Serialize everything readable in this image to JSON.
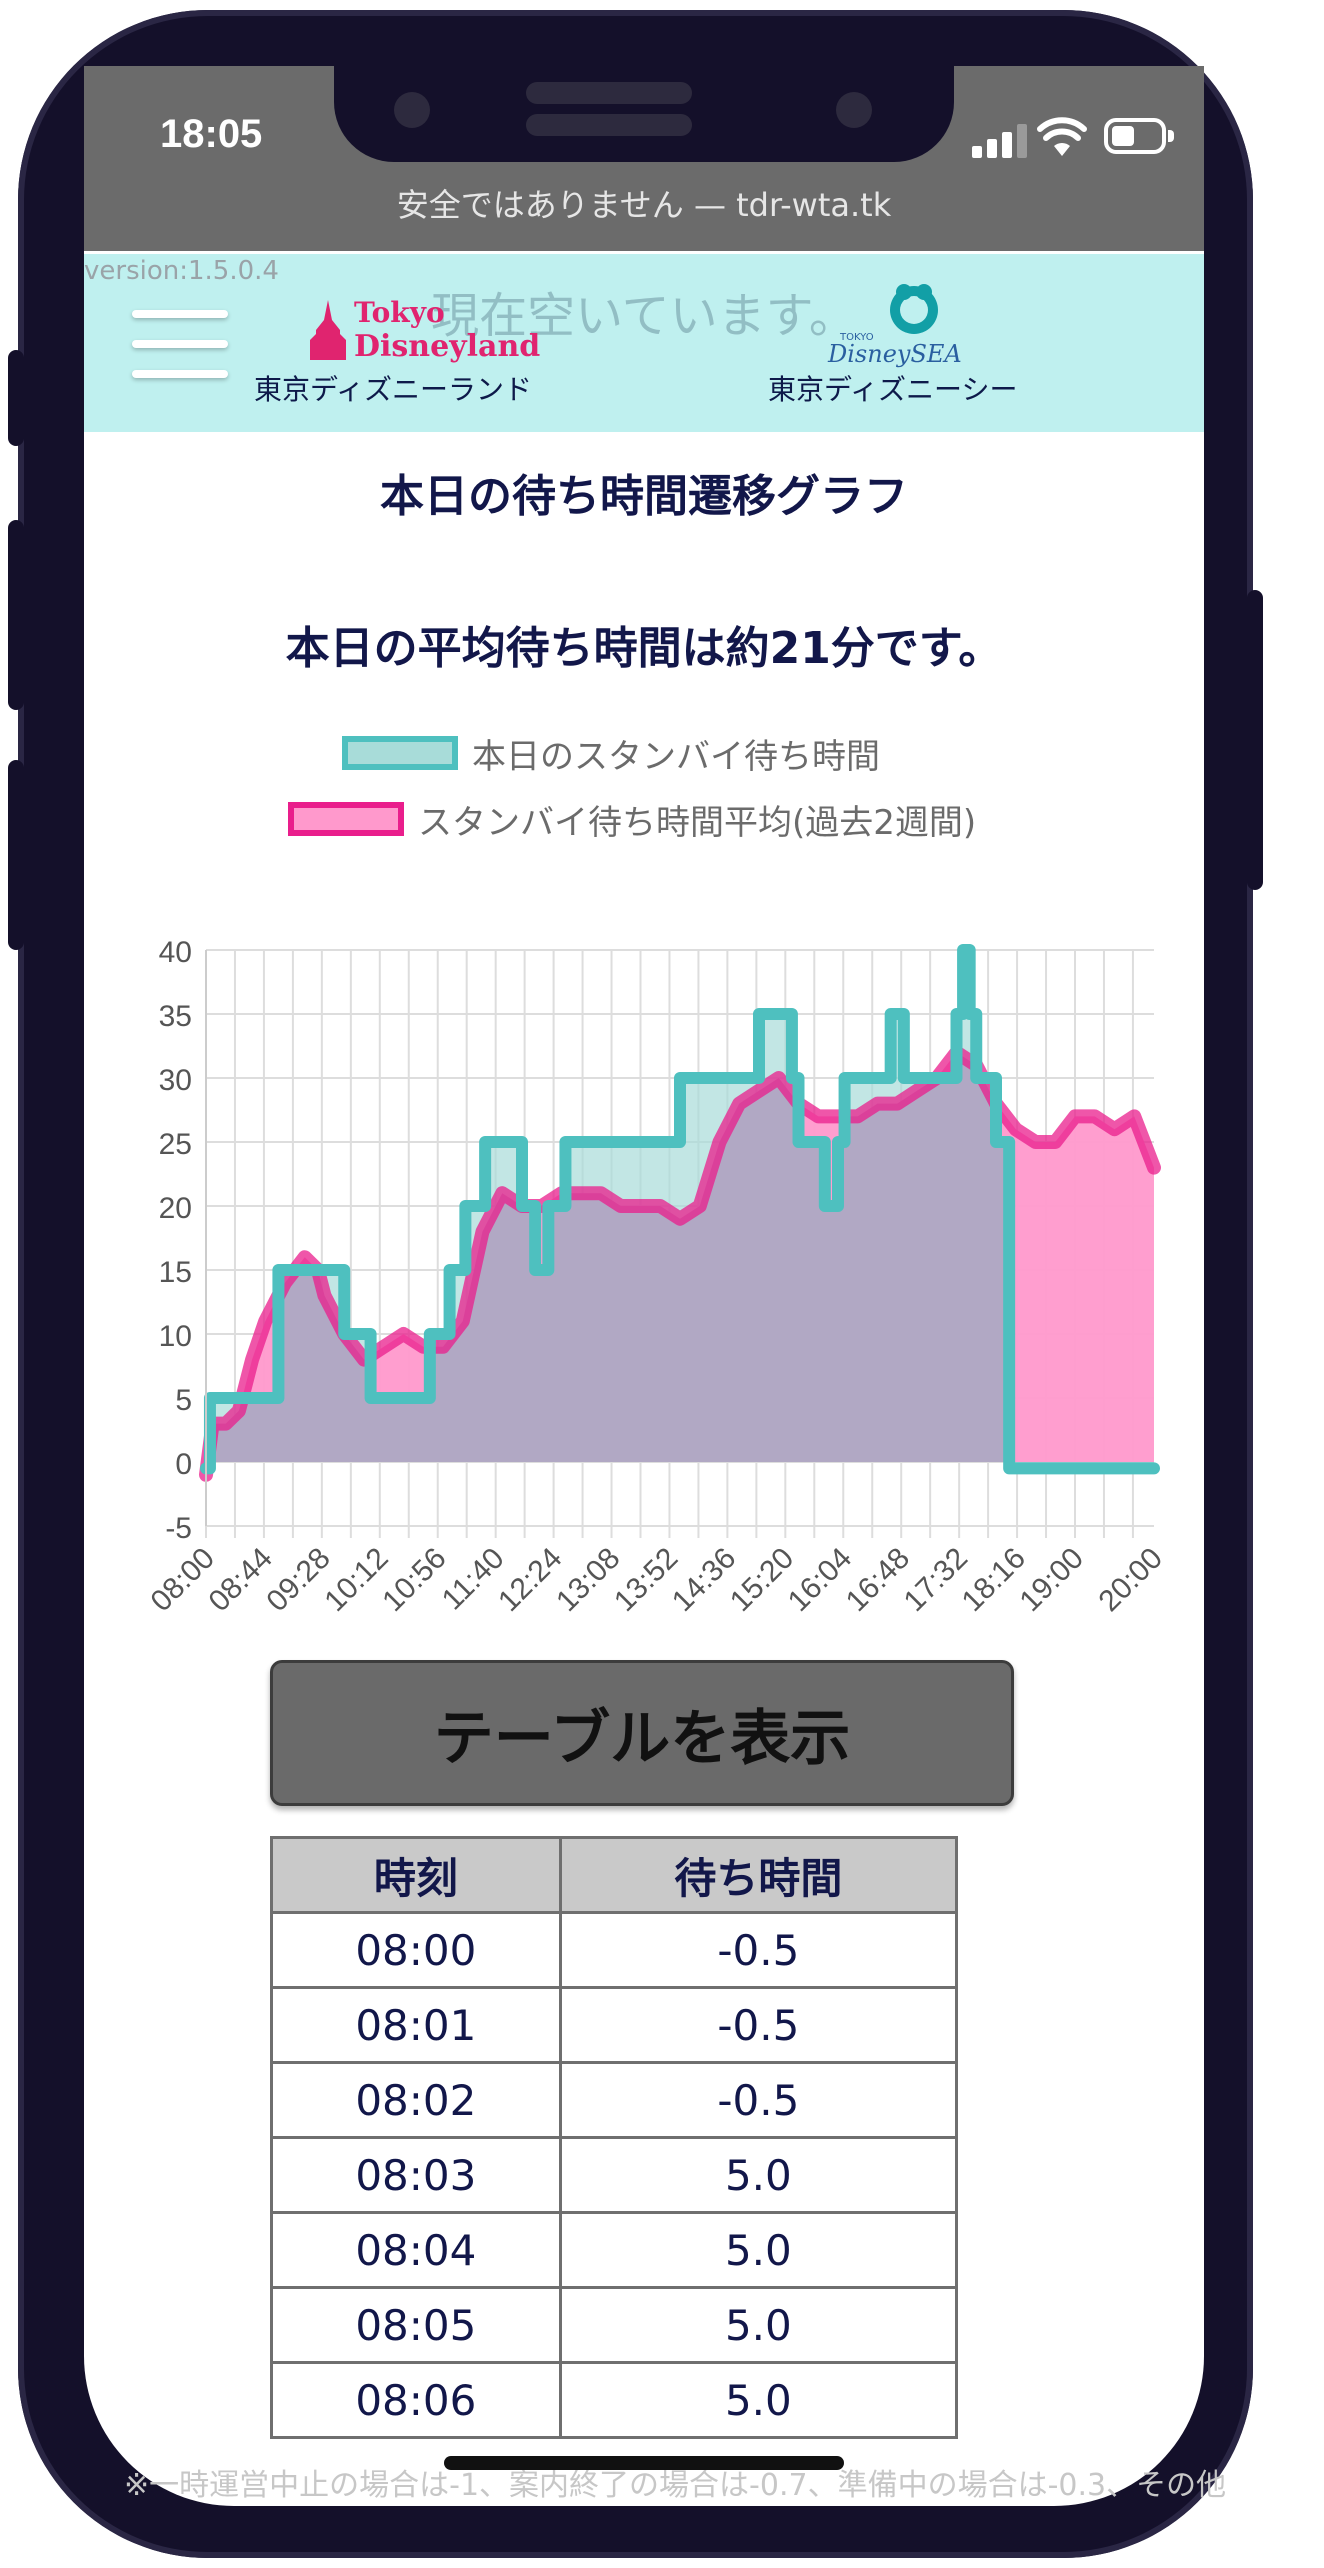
{
  "status_bar": {
    "time": "18:05"
  },
  "browser": {
    "url_text": "安全ではありません — tdr-wta.tk"
  },
  "header": {
    "version": "version:1.5.0.4",
    "status_text": "現在空いています。",
    "tdl_logo_line1": "Tokyo",
    "tdl_logo_line2": "Disneyland",
    "tds_logo_small": "TOKYO",
    "tds_logo_text": "DisneySEA",
    "tdl_label": "東京ディズニーランド",
    "tds_label": "東京ディズニーシー"
  },
  "page": {
    "title": "本日の待ち時間遷移グラフ",
    "average_text": "本日の平均待ち時間は約21分です。",
    "show_table_button": "テーブルを表示"
  },
  "colors": {
    "today_line": "#4ec0bf",
    "today_fill": "#a8dcd9",
    "avg_line": "#e91e8c",
    "avg_fill": "#ff99cc",
    "overlap_fill": "#b1a8c4",
    "header_bg": "#bff0ef"
  },
  "chart_data": {
    "type": "line",
    "title": "",
    "xlabel": "",
    "ylabel": "",
    "ylim": [
      -5,
      40
    ],
    "yticks": [
      "40",
      "35",
      "30",
      "25",
      "20",
      "15",
      "10",
      "5",
      "0",
      "-5"
    ],
    "xticks": [
      "08:00",
      "08:44",
      "09:28",
      "10:12",
      "10:56",
      "11:40",
      "12:24",
      "13:08",
      "13:52",
      "14:36",
      "15:20",
      "16:04",
      "16:48",
      "17:32",
      "18:16",
      "19:00",
      "20:00"
    ],
    "grid": true,
    "legend_position": "top",
    "series": [
      {
        "name": "本日のスタンバイ待ち時間",
        "step": true,
        "x": [
          "08:00",
          "08:03",
          "08:25",
          "08:53",
          "08:55",
          "09:30",
          "09:45",
          "10:00",
          "10:05",
          "10:30",
          "10:50",
          "10:55",
          "11:05",
          "11:12",
          "11:17",
          "11:22",
          "11:32",
          "11:36",
          "12:00",
          "12:10",
          "12:18",
          "12:20",
          "12:30",
          "12:33",
          "13:40",
          "13:50",
          "14:00",
          "14:30",
          "14:40",
          "15:00",
          "15:15",
          "15:25",
          "15:30",
          "15:45",
          "15:50",
          "16:00",
          "16:05",
          "16:30",
          "16:40",
          "16:50",
          "17:25",
          "17:30",
          "17:35",
          "17:40",
          "17:45",
          "17:50",
          "18:00",
          "18:10",
          "19:30",
          "20:00"
        ],
        "y": [
          -0.5,
          5,
          5,
          5,
          15,
          15,
          10,
          10,
          5,
          5,
          10,
          10,
          15,
          15,
          20,
          20,
          25,
          25,
          20,
          15,
          15,
          20,
          20,
          25,
          25,
          25,
          30,
          30,
          30,
          35,
          35,
          30,
          25,
          25,
          20,
          25,
          30,
          30,
          35,
          30,
          30,
          35,
          40,
          35,
          30,
          30,
          25,
          -0.5,
          -0.5,
          -0.5
        ]
      },
      {
        "name": "スタンバイ待ち時間平均(過去2週間)",
        "x": [
          "08:00",
          "08:05",
          "08:15",
          "08:25",
          "08:35",
          "08:45",
          "09:00",
          "09:15",
          "09:25",
          "09:30",
          "09:45",
          "10:00",
          "10:15",
          "10:30",
          "10:45",
          "11:00",
          "11:15",
          "11:30",
          "11:45",
          "12:00",
          "12:15",
          "12:30",
          "12:45",
          "13:00",
          "13:15",
          "13:30",
          "13:45",
          "14:00",
          "14:15",
          "14:30",
          "14:45",
          "15:00",
          "15:15",
          "15:30",
          "15:45",
          "16:00",
          "16:15",
          "16:30",
          "16:45",
          "17:00",
          "17:15",
          "17:30",
          "17:45",
          "18:00",
          "18:15",
          "18:30",
          "18:45",
          "19:00",
          "19:15",
          "19:30",
          "19:45",
          "20:00"
        ],
        "y": [
          -1,
          3,
          3,
          4,
          8,
          11,
          14,
          16,
          15,
          13,
          10,
          8,
          9,
          10,
          9,
          9,
          11,
          18,
          21,
          20,
          20,
          21,
          21,
          21,
          20,
          20,
          20,
          19,
          20,
          25,
          28,
          29,
          30,
          28,
          27,
          27,
          27,
          28,
          28,
          29,
          30,
          32,
          31,
          28,
          26,
          25,
          25,
          27,
          27,
          26,
          27,
          23
        ]
      }
    ]
  },
  "table": {
    "headers": [
      "時刻",
      "待ち時間"
    ],
    "rows": [
      [
        "08:00",
        "-0.5"
      ],
      [
        "08:01",
        "-0.5"
      ],
      [
        "08:02",
        "-0.5"
      ],
      [
        "08:03",
        "5.0"
      ],
      [
        "08:04",
        "5.0"
      ],
      [
        "08:05",
        "5.0"
      ],
      [
        "08:06",
        "5.0"
      ]
    ]
  },
  "footnote": "※一時運営中止の場合は-1、案内終了の場合は-0.7、準備中の場合は-0.3、その他"
}
